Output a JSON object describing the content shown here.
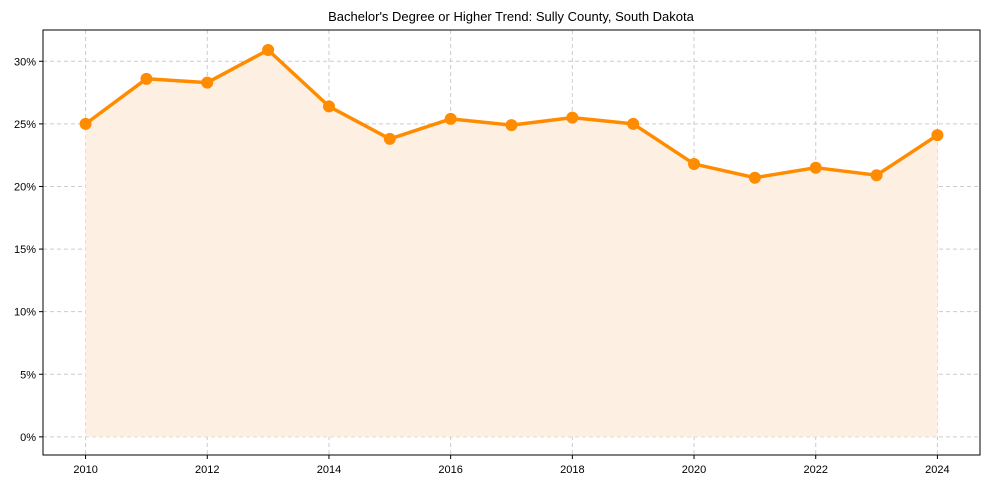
{
  "chart_data": {
    "type": "line",
    "title": "Bachelor's Degree or Higher Trend: Sully County, South Dakota",
    "xlabel": "",
    "ylabel": "",
    "x": [
      2010,
      2011,
      2012,
      2013,
      2014,
      2015,
      2016,
      2017,
      2018,
      2019,
      2020,
      2021,
      2022,
      2023,
      2024
    ],
    "series": [
      {
        "name": "Bachelor's Degree or Higher",
        "values": [
          25.0,
          28.6,
          28.3,
          30.9,
          26.4,
          23.8,
          25.4,
          24.9,
          25.5,
          25.0,
          21.8,
          20.7,
          21.5,
          20.9,
          24.1
        ],
        "color": "#ff8c00",
        "fill": "#fdf0e3"
      }
    ],
    "xticks": [
      2010,
      2012,
      2014,
      2016,
      2018,
      2020,
      2022,
      2024
    ],
    "xtick_labels": [
      "2010",
      "2012",
      "2014",
      "2016",
      "2018",
      "2020",
      "2022",
      "2024"
    ],
    "yticks": [
      0,
      5,
      10,
      15,
      20,
      25,
      30
    ],
    "ytick_labels": [
      "0%",
      "5%",
      "10%",
      "15%",
      "20%",
      "25%",
      "30%"
    ],
    "xlim": [
      2009.3,
      2024.7
    ],
    "ylim": [
      -1.45,
      32.5
    ],
    "grid": true
  }
}
